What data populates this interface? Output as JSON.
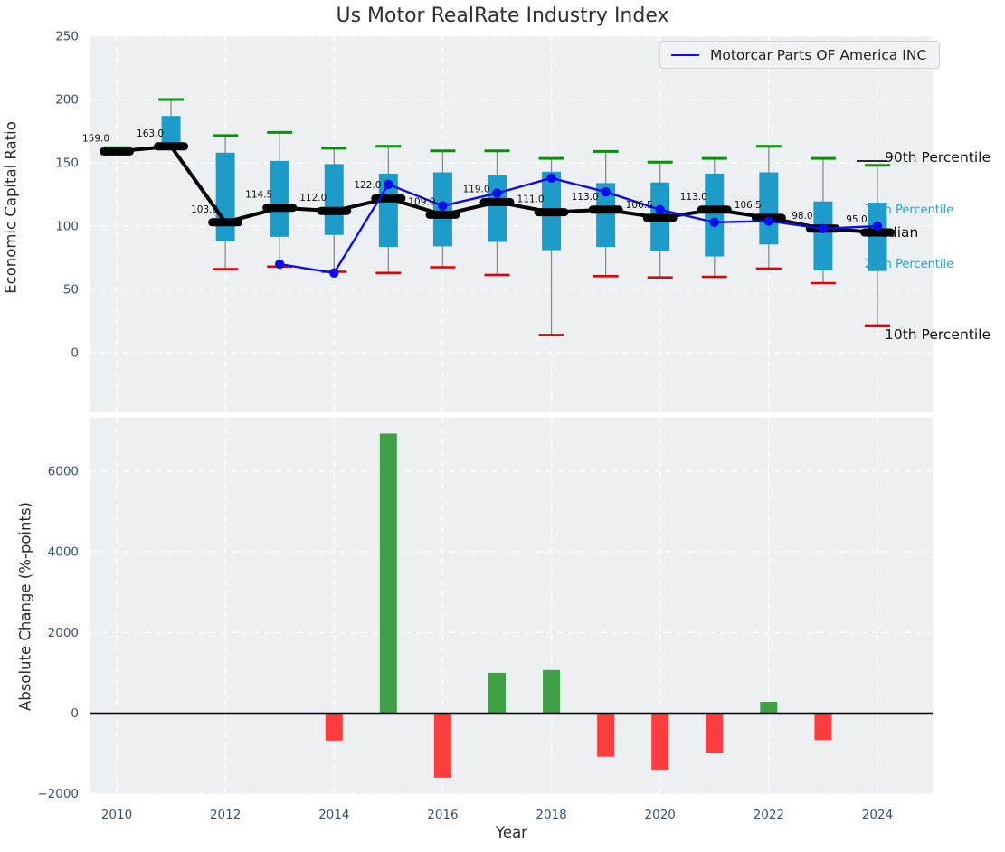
{
  "figure": {
    "title": "Us Motor RealRate Industry Index",
    "background": "#ffffff"
  },
  "legend": {
    "label": "Motorcar Parts OF America INC"
  },
  "annotations": {
    "p90": "90th Percentile",
    "p75": "75th Percentile",
    "median": "Median",
    "p25": "25th Percentile",
    "p10": "10th Percentile"
  },
  "colors": {
    "box": "#1e9cc9",
    "whisker": "#8a8a8a",
    "cap_high": "#0a8f0a",
    "cap_low": "#e60000",
    "median_line": "#000000",
    "company_line": "#0c0cec",
    "bar_positive": "#3fa045",
    "bar_negative": "#fb3d3d",
    "plot_bg": "#edf0f2",
    "grid": "#ffffff",
    "tick": "#3d5068",
    "median_label": "#0d0d0d",
    "percentile_label": "#22a3cf",
    "annotation_black": "#111111",
    "zero_line": "#000000"
  },
  "chart_data": [
    {
      "type": "boxplot+line",
      "title": "Us Motor RealRate Industry Index",
      "ylabel": "Economic Capital Ratio",
      "x": [
        2010,
        2011,
        2012,
        2013,
        2014,
        2015,
        2016,
        2017,
        2018,
        2019,
        2020,
        2021,
        2022,
        2023,
        2024
      ],
      "ylim": [
        -46,
        250
      ],
      "yticks": [
        0,
        50,
        100,
        150,
        200,
        250
      ],
      "ytick_labels": [
        "0",
        "50",
        "100",
        "150",
        "200",
        "250"
      ],
      "grid": true,
      "legend_position": "upper right",
      "series": [
        {
          "name": "90th Percentile",
          "values": [
            162,
            200,
            171.5,
            174,
            161.5,
            163,
            159.5,
            159.5,
            153.5,
            159,
            150.5,
            153.5,
            163,
            153.5,
            148
          ]
        },
        {
          "name": "75th Percentile",
          "values": [
            160.5,
            187,
            158,
            151.5,
            149,
            141.5,
            142.5,
            140.5,
            143,
            134,
            134.5,
            141.5,
            142.5,
            119.5,
            118.5
          ]
        },
        {
          "name": "Median",
          "values": [
            159,
            163,
            103,
            114.5,
            112,
            122,
            109,
            119,
            111,
            113,
            106.5,
            113,
            106.5,
            98,
            95
          ]
        },
        {
          "name": "25th Percentile",
          "values": [
            157.5,
            162,
            88,
            91.5,
            93,
            83.5,
            84,
            87.5,
            81,
            83.5,
            80,
            76,
            85.5,
            65,
            64.5
          ]
        },
        {
          "name": "10th Percentile",
          "values": [
            157.5,
            162,
            66,
            68,
            64,
            63,
            67.5,
            61.5,
            14,
            60.5,
            59.5,
            60,
            66.5,
            55,
            21.5
          ]
        },
        {
          "name": "Motorcar Parts OF America INC",
          "x": [
            2013,
            2014,
            2015,
            2016,
            2017,
            2018,
            2019,
            2020,
            2021,
            2022,
            2023,
            2024
          ],
          "values": [
            70,
            63,
            133,
            116,
            126,
            138,
            127,
            113,
            103,
            104,
            98,
            100
          ]
        }
      ],
      "median_labels": [
        "159.0",
        "163.0",
        "103.0",
        "114.5",
        "112.0",
        "122.0",
        "109.0",
        "119.0",
        "111.0",
        "113.0",
        "106.5",
        "113.0",
        "106.5",
        "98.0",
        "95.0"
      ]
    },
    {
      "type": "bar",
      "ylabel": "Absolute Change (%-points)",
      "xlabel": "Year",
      "x": [
        2010,
        2011,
        2012,
        2013,
        2014,
        2015,
        2016,
        2017,
        2018,
        2019,
        2020,
        2021,
        2022,
        2023,
        2024
      ],
      "values": [
        0,
        0,
        0,
        0,
        -680,
        6930,
        -1600,
        1000,
        1070,
        -1080,
        -1400,
        -980,
        280,
        -670,
        0
      ],
      "ylim": [
        -2230,
        7360
      ],
      "yticks": [
        -2000,
        0,
        2000,
        4000,
        6000
      ],
      "ytick_labels": [
        "−2000",
        "0",
        "2000",
        "4000",
        "6000"
      ],
      "xticks": [
        2010,
        2012,
        2014,
        2016,
        2018,
        2020,
        2022,
        2024
      ],
      "xtick_labels": [
        "2010",
        "2012",
        "2014",
        "2016",
        "2018",
        "2020",
        "2022",
        "2024"
      ],
      "grid": true
    }
  ]
}
